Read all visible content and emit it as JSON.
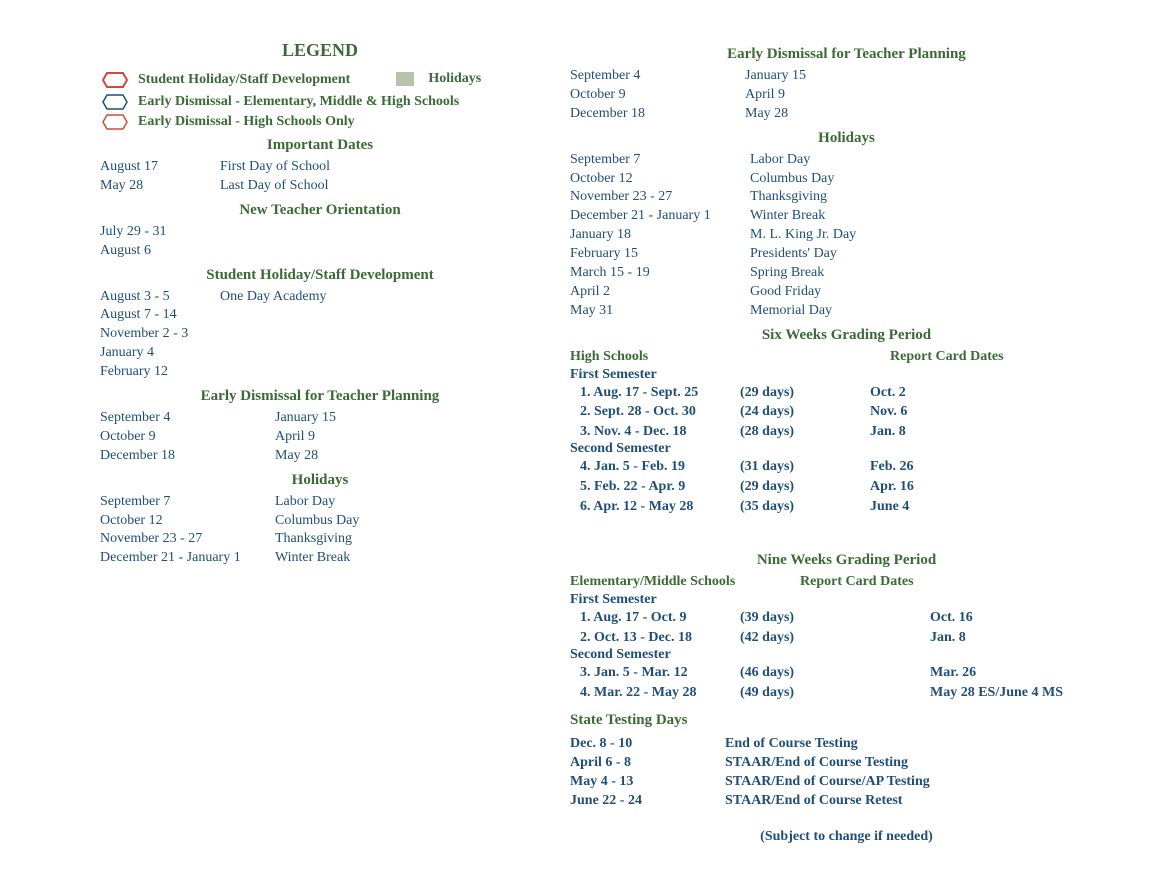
{
  "colors": {
    "text": "#1f4e79",
    "heading": "#3a6b35",
    "swatch": "#b8c4aa",
    "red": "#d04a3a"
  },
  "legend": {
    "title": "LEGEND",
    "items": [
      {
        "icon": "red-hex",
        "label": "Student Holiday/Staff Development"
      },
      {
        "icon": "swatch",
        "label": "Holidays"
      },
      {
        "icon": "white-hex",
        "label": "Early Dismissal - Elementary, Middle & High Schools"
      },
      {
        "icon": "red-outline-hex",
        "label": "Early Dismissal - High Schools Only"
      }
    ]
  },
  "important_dates": {
    "title": "Important Dates",
    "rows": [
      {
        "date": "August 17",
        "label": "First Day of School"
      },
      {
        "date": "May 28",
        "label": "Last Day of School"
      }
    ]
  },
  "new_teacher": {
    "title": "New Teacher Orientation",
    "rows": [
      {
        "date": "July 29 - 31"
      },
      {
        "date": "August 6"
      }
    ]
  },
  "staff_dev": {
    "title": "Student Holiday/Staff Development",
    "rows": [
      {
        "date": "August  3 - 5",
        "label": "One Day Academy"
      },
      {
        "date": "August  7 - 14"
      },
      {
        "date": "November 2 - 3"
      },
      {
        "date": "January 4"
      },
      {
        "date": "February 12"
      }
    ]
  },
  "early_dismissal_left": {
    "title": "Early Dismissal for Teacher Planning",
    "left": [
      {
        "date": "September 4"
      },
      {
        "date": "October 9"
      },
      {
        "date": "December 18"
      }
    ],
    "right": [
      {
        "date": "January 15"
      },
      {
        "date": "April 9"
      },
      {
        "date": "May 28"
      }
    ]
  },
  "holidays_left": {
    "title": "Holidays",
    "rows": [
      {
        "date": "September 7",
        "label": "Labor Day"
      },
      {
        "date": "October 12",
        "label": "Columbus Day"
      },
      {
        "date": "November 23 - 27",
        "label": "Thanksgiving"
      },
      {
        "date": "December 21 - January 1",
        "label": "Winter Break"
      }
    ]
  },
  "early_dismissal_right": {
    "title": "Early Dismissal for Teacher Planning",
    "left": [
      {
        "date": "September 4"
      },
      {
        "date": "October 9"
      },
      {
        "date": "December 18"
      }
    ],
    "right": [
      {
        "date": "January 15"
      },
      {
        "date": "April 9"
      },
      {
        "date": "May 28"
      }
    ]
  },
  "holidays_right": {
    "title": "Holidays",
    "rows": [
      {
        "date": "September 7",
        "label": "Labor Day"
      },
      {
        "date": "October 12",
        "label": "Columbus Day"
      },
      {
        "date": "November 23 - 27",
        "label": "Thanksgiving"
      },
      {
        "date": "December 21 - January 1",
        "label": "Winter Break"
      },
      {
        "date": "January 18",
        "label": "M. L. King Jr. Day"
      },
      {
        "date": "February 15",
        "label": "Presidents' Day"
      },
      {
        "date": "March 15 - 19",
        "label": "Spring Break"
      },
      {
        "date": "April 2",
        "label": "Good Friday"
      },
      {
        "date": "May  31",
        "label": "Memorial Day"
      }
    ]
  },
  "six_weeks": {
    "title": "Six Weeks Grading Period",
    "hs_label": "High Schools",
    "report_label": "Report Card Dates",
    "sem1_label": "First Semester",
    "sem1": [
      {
        "n": "1.  Aug. 17 - Sept. 25",
        "days": "(29 days)",
        "rc": "Oct. 2"
      },
      {
        "n": "2. Sept. 28 - Oct. 30",
        "days": "(24 days)",
        "rc": "Nov. 6"
      },
      {
        "n": "3. Nov. 4 - Dec. 18",
        "days": "(28 days)",
        "rc": "Jan. 8"
      }
    ],
    "sem2_label": "Second Semester",
    "sem2": [
      {
        "n": "4. Jan. 5 - Feb. 19",
        "days": "(31 days)",
        "rc": "Feb. 26"
      },
      {
        "n": "5. Feb. 22 - Apr. 9",
        "days": "(29 days)",
        "rc": "Apr. 16"
      },
      {
        "n": "6. Apr. 12 - May 28",
        "days": "(35 days)",
        "rc": "June 4"
      }
    ]
  },
  "nine_weeks": {
    "title": "Nine Weeks Grading Period",
    "ems_label": "Elementary/Middle Schools",
    "report_label": "Report Card Dates",
    "sem1_label": "First Semester",
    "sem1": [
      {
        "n": "1.  Aug. 17 - Oct. 9",
        "days": "(39 days)",
        "rc": "Oct. 16"
      },
      {
        "n": "2.  Oct. 13 - Dec. 18",
        "days": "(42 days)",
        "rc": "Jan. 8"
      }
    ],
    "sem2_label": "Second Semester",
    "sem2": [
      {
        "n": "3. Jan. 5 - Mar. 12",
        "days": "(46 days)",
        "rc": "Mar. 26"
      },
      {
        "n": "4. Mar. 22 - May 28",
        "days": "(49 days)",
        "rc": "May 28 ES/June 4 MS"
      }
    ]
  },
  "testing": {
    "title": "State Testing Days",
    "rows": [
      {
        "date": "Dec. 8 - 10",
        "label": "End of Course Testing"
      },
      {
        "date": "April 6 - 8",
        "label": "STAAR/End of Course Testing"
      },
      {
        "date": "May 4 - 13",
        "label": "STAAR/End of Course/AP Testing"
      },
      {
        "date": "June 22 - 24",
        "label": "STAAR/End of Course Retest"
      }
    ]
  },
  "footer": "(Subject to change if needed)"
}
